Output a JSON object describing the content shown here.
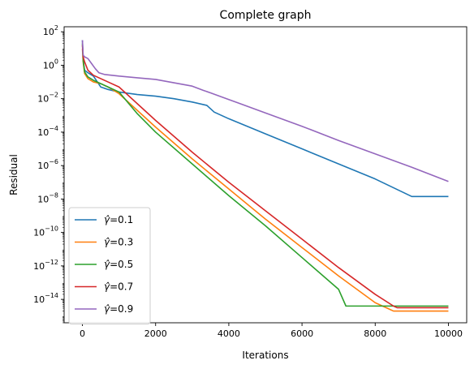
{
  "chart_data": {
    "type": "line",
    "title": "Complete graph",
    "xlabel": "Iterations",
    "ylabel": "Residual",
    "xlim": [
      -500,
      10500
    ],
    "ylim_log10": [
      -15.4,
      2.3
    ],
    "yscale": "log",
    "x_ticks": [
      0,
      2000,
      4000,
      6000,
      8000,
      10000
    ],
    "y_ticks_exp": [
      2,
      0,
      -2,
      -4,
      -6,
      -8,
      -10,
      -12,
      -14
    ],
    "y_tick_base": "10",
    "legend_position": "lower-left",
    "grid": false,
    "series": [
      {
        "name": "γ̂=0.1",
        "name_symbol": "γ̂",
        "name_value": "=0.1",
        "color": "#1f77b4",
        "x": [
          0,
          20,
          60,
          150,
          300,
          500,
          700,
          1000,
          1500,
          2000,
          2500,
          3000,
          3400,
          3500,
          3600,
          4000,
          5000,
          6000,
          7000,
          8000,
          9000,
          10000
        ],
        "log10y": [
          1.5,
          0.3,
          -0.3,
          -0.45,
          -0.65,
          -1.3,
          -1.45,
          -1.6,
          -1.75,
          -1.85,
          -2.0,
          -2.2,
          -2.4,
          -2.6,
          -2.8,
          -3.2,
          -4.1,
          -5.0,
          -5.9,
          -6.8,
          -7.85,
          -7.85
        ]
      },
      {
        "name": "γ̂=0.3",
        "name_symbol": "γ̂",
        "name_value": "=0.3",
        "color": "#ff7f0e",
        "x": [
          0,
          20,
          60,
          150,
          300,
          500,
          700,
          1000,
          1500,
          2000,
          3000,
          4000,
          5000,
          6000,
          7000,
          8000,
          8400,
          8500,
          8600,
          9000,
          10000
        ],
        "log10y": [
          1.0,
          0.2,
          -0.5,
          -0.8,
          -1.0,
          -1.1,
          -1.3,
          -1.7,
          -2.7,
          -3.7,
          -5.6,
          -7.4,
          -9.2,
          -10.9,
          -12.6,
          -14.2,
          -14.6,
          -14.7,
          -14.7,
          -14.7,
          -14.7
        ]
      },
      {
        "name": "γ̂=0.5",
        "name_symbol": "γ̂",
        "name_value": "=0.5",
        "color": "#2ca02c",
        "x": [
          0,
          20,
          60,
          150,
          300,
          500,
          700,
          1000,
          1500,
          2000,
          3000,
          4000,
          5000,
          6000,
          7000,
          7200,
          7500,
          8000,
          9000,
          10000
        ],
        "log10y": [
          1.3,
          0.3,
          -0.4,
          -0.7,
          -0.9,
          -1.1,
          -1.3,
          -1.6,
          -2.9,
          -4.0,
          -5.9,
          -7.8,
          -9.6,
          -11.5,
          -13.4,
          -14.4,
          -14.4,
          -14.4,
          -14.4,
          -14.4
        ]
      },
      {
        "name": "γ̂=0.7",
        "name_symbol": "γ̂",
        "name_value": "=0.7",
        "color": "#d62728",
        "x": [
          0,
          20,
          60,
          150,
          300,
          500,
          700,
          1000,
          1500,
          2000,
          3000,
          4000,
          5000,
          6000,
          7000,
          8000,
          8500,
          8600,
          9000,
          10000
        ],
        "log10y": [
          1.2,
          0.5,
          0.2,
          -0.3,
          -0.6,
          -0.8,
          -1.0,
          -1.3,
          -2.3,
          -3.3,
          -5.2,
          -7.0,
          -8.7,
          -10.4,
          -12.1,
          -13.7,
          -14.4,
          -14.5,
          -14.5,
          -14.5
        ]
      },
      {
        "name": "γ̂=0.9",
        "name_symbol": "γ̂",
        "name_value": "=0.9",
        "color": "#9467bd",
        "x": [
          0,
          20,
          60,
          150,
          250,
          350,
          450,
          600,
          1000,
          1500,
          2000,
          2500,
          3000,
          3300,
          3500,
          4000,
          5000,
          6000,
          7000,
          8000,
          9000,
          10000
        ],
        "log10y": [
          1.5,
          0.6,
          0.5,
          0.4,
          0.1,
          -0.2,
          -0.45,
          -0.55,
          -0.65,
          -0.75,
          -0.85,
          -1.05,
          -1.25,
          -1.5,
          -1.65,
          -2.05,
          -2.85,
          -3.65,
          -4.5,
          -5.3,
          -6.1,
          -6.95
        ]
      }
    ]
  }
}
